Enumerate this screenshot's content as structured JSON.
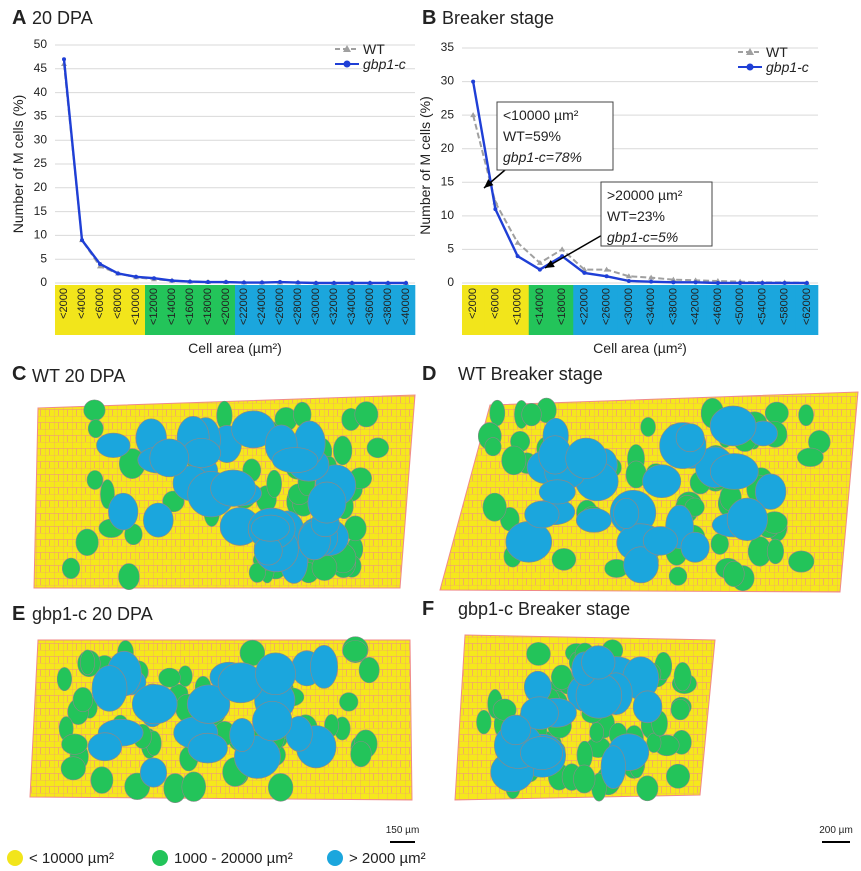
{
  "chart_data": [
    {
      "type": "line",
      "panel": "A",
      "title": "20 DPA",
      "x_label": "Cell area (µm²)",
      "y_label": "Number of M cells (%)",
      "categories": [
        "<2000",
        "<4000",
        "<6000",
        "<8000",
        "<10000",
        "<12000",
        "<14000",
        "<16000",
        "<18000",
        "<20000",
        "<22000",
        "<24000",
        "<26000",
        "<28000",
        "<30000",
        "<32000",
        "<34000",
        "<36000",
        "<38000",
        "<40000"
      ],
      "category_colors": [
        "#f2e51b",
        "#f2e51b",
        "#f2e51b",
        "#f2e51b",
        "#f2e51b",
        "#23c45a",
        "#23c45a",
        "#23c45a",
        "#23c45a",
        "#23c45a",
        "#1ba6dd",
        "#1ba6dd",
        "#1ba6dd",
        "#1ba6dd",
        "#1ba6dd",
        "#1ba6dd",
        "#1ba6dd",
        "#1ba6dd",
        "#1ba6dd",
        "#1ba6dd"
      ],
      "series": [
        {
          "name": "WT",
          "color": "#a0a0a0",
          "dashed": true,
          "marker": "triangle",
          "values": [
            46,
            9,
            3.5,
            2,
            1.2,
            0.8,
            0.5,
            0.3,
            0.2,
            0.2,
            0.1,
            0.1,
            0.1,
            0.1,
            0,
            0,
            0,
            0,
            0,
            0
          ]
        },
        {
          "name": "gbp1-c",
          "color": "#1f3fd6",
          "dashed": false,
          "marker": "circle",
          "values": [
            47,
            9,
            4,
            2,
            1.3,
            1,
            0.5,
            0.3,
            0.2,
            0.2,
            0.1,
            0.1,
            0.2,
            0.1,
            0,
            0,
            0,
            0,
            0,
            0
          ]
        }
      ],
      "ylim": [
        0,
        50
      ],
      "yticks": [
        0,
        5,
        10,
        15,
        20,
        25,
        30,
        35,
        40,
        45,
        50
      ],
      "grid": true,
      "legend": "top-right"
    },
    {
      "type": "line",
      "panel": "B",
      "title": "Breaker stage",
      "x_label": "Cell area (µm²)",
      "y_label": "Number of M cells (%)",
      "categories": [
        "<2000",
        "<6000",
        "<10000",
        "<14000",
        "<18000",
        "<22000",
        "<26000",
        "<30000",
        "<34000",
        "<38000",
        "<42000",
        "<46000",
        "<50000",
        "<54000",
        "<58000",
        "<62000"
      ],
      "category_colors": [
        "#f2e51b",
        "#f2e51b",
        "#f2e51b",
        "#23c45a",
        "#23c45a",
        "#1ba6dd",
        "#1ba6dd",
        "#1ba6dd",
        "#1ba6dd",
        "#1ba6dd",
        "#1ba6dd",
        "#1ba6dd",
        "#1ba6dd",
        "#1ba6dd",
        "#1ba6dd",
        "#1ba6dd"
      ],
      "series": [
        {
          "name": "WT",
          "color": "#a0a0a0",
          "dashed": true,
          "marker": "triangle",
          "values": [
            25,
            12,
            6,
            3,
            5,
            2,
            2,
            1,
            0.8,
            0.5,
            0.4,
            0.3,
            0.2,
            0.1,
            0.1,
            0
          ]
        },
        {
          "name": "gbp1-c",
          "color": "#1f3fd6",
          "dashed": false,
          "marker": "circle",
          "values": [
            30,
            11,
            4,
            2,
            4,
            1.5,
            1,
            0.3,
            0.2,
            0.1,
            0.1,
            0,
            0,
            0,
            0,
            0
          ]
        }
      ],
      "ylim": [
        0,
        35
      ],
      "yticks": [
        0,
        5,
        10,
        15,
        20,
        25,
        30,
        35
      ],
      "grid": true,
      "legend": "top-right",
      "annotations": [
        {
          "lines": [
            "<10000 µm²",
            "WT=59%",
            "gbp1-c=78%"
          ]
        },
        {
          "lines": [
            ">20000 µm²",
            "WT=23%",
            "gbp1-c=5%"
          ]
        }
      ]
    }
  ],
  "panels": [
    {
      "letter": "C",
      "title": "WT 20 DPA"
    },
    {
      "letter": "D",
      "title": "WT Breaker stage"
    },
    {
      "letter": "E",
      "title": "gbp1-c 20 DPA"
    },
    {
      "letter": "F",
      "title": "gbp1-c Breaker stage"
    }
  ],
  "scale_bars": [
    "150 µm",
    "200 µm"
  ],
  "cell_legend": [
    {
      "label": "< 10000 µm²",
      "color": "#f2e51b"
    },
    {
      "label": "1000 - 20000 µm²",
      "color": "#23c45a"
    },
    {
      "label": "> 2000 µm²",
      "color": "#1ba6dd"
    }
  ]
}
